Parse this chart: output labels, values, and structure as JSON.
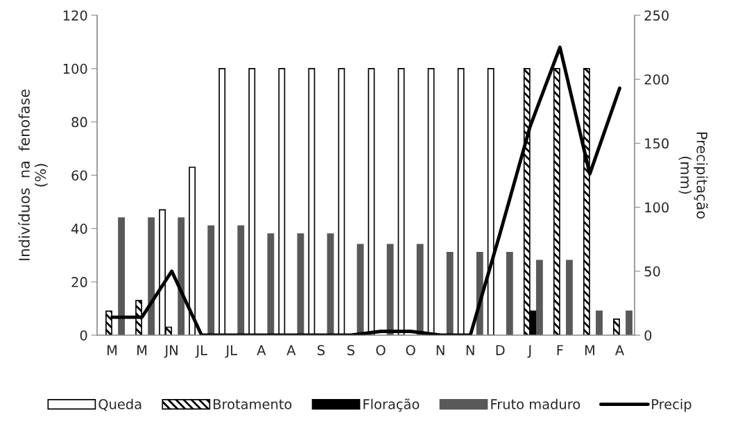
{
  "chart_data": {
    "type": "bar",
    "categories": [
      "M",
      "M",
      "JN",
      "JL",
      "JL",
      "A",
      "A",
      "S",
      "S",
      "O",
      "O",
      "N",
      "N",
      "D",
      "J",
      "F",
      "M",
      "A"
    ],
    "ylabel": "Indivíduos  na  fenofase\n(%)",
    "y2label": "Precipitação\n(mm)",
    "ylim": [
      0,
      120
    ],
    "yticks": [
      0,
      20,
      40,
      60,
      80,
      100,
      120
    ],
    "y2lim": [
      0,
      250
    ],
    "y2ticks": [
      0,
      50,
      100,
      150,
      200,
      250
    ],
    "grid": false,
    "legend": "bottom",
    "series": [
      {
        "name": "Queda",
        "color": "#ffffff",
        "values": [
          null,
          null,
          47,
          63,
          100,
          100,
          100,
          100,
          100,
          100,
          100,
          100,
          100,
          100,
          null,
          null,
          null,
          null
        ]
      },
      {
        "name": "Brotamento",
        "color": "#000000",
        "values": [
          9,
          13,
          3,
          null,
          null,
          null,
          null,
          null,
          null,
          null,
          null,
          null,
          null,
          null,
          100,
          100,
          100,
          6
        ]
      },
      {
        "name": "Floração",
        "color": "#000000",
        "values": [
          null,
          null,
          null,
          null,
          null,
          null,
          null,
          null,
          null,
          null,
          null,
          null,
          null,
          null,
          9,
          null,
          null,
          null
        ]
      },
      {
        "name": "Fruto maduro",
        "color": "#595959",
        "values": [
          44,
          44,
          44,
          41,
          41,
          38,
          38,
          38,
          34,
          34,
          34,
          31,
          31,
          31,
          28,
          28,
          9,
          9
        ]
      },
      {
        "name": "Precip",
        "type": "line",
        "axis": "y2",
        "color": "#000000",
        "line_style": "solid",
        "values": [
          14,
          14,
          50,
          0,
          0,
          0,
          0,
          0,
          0,
          3,
          3,
          0,
          0,
          80,
          163,
          225,
          126,
          193
        ]
      }
    ]
  }
}
